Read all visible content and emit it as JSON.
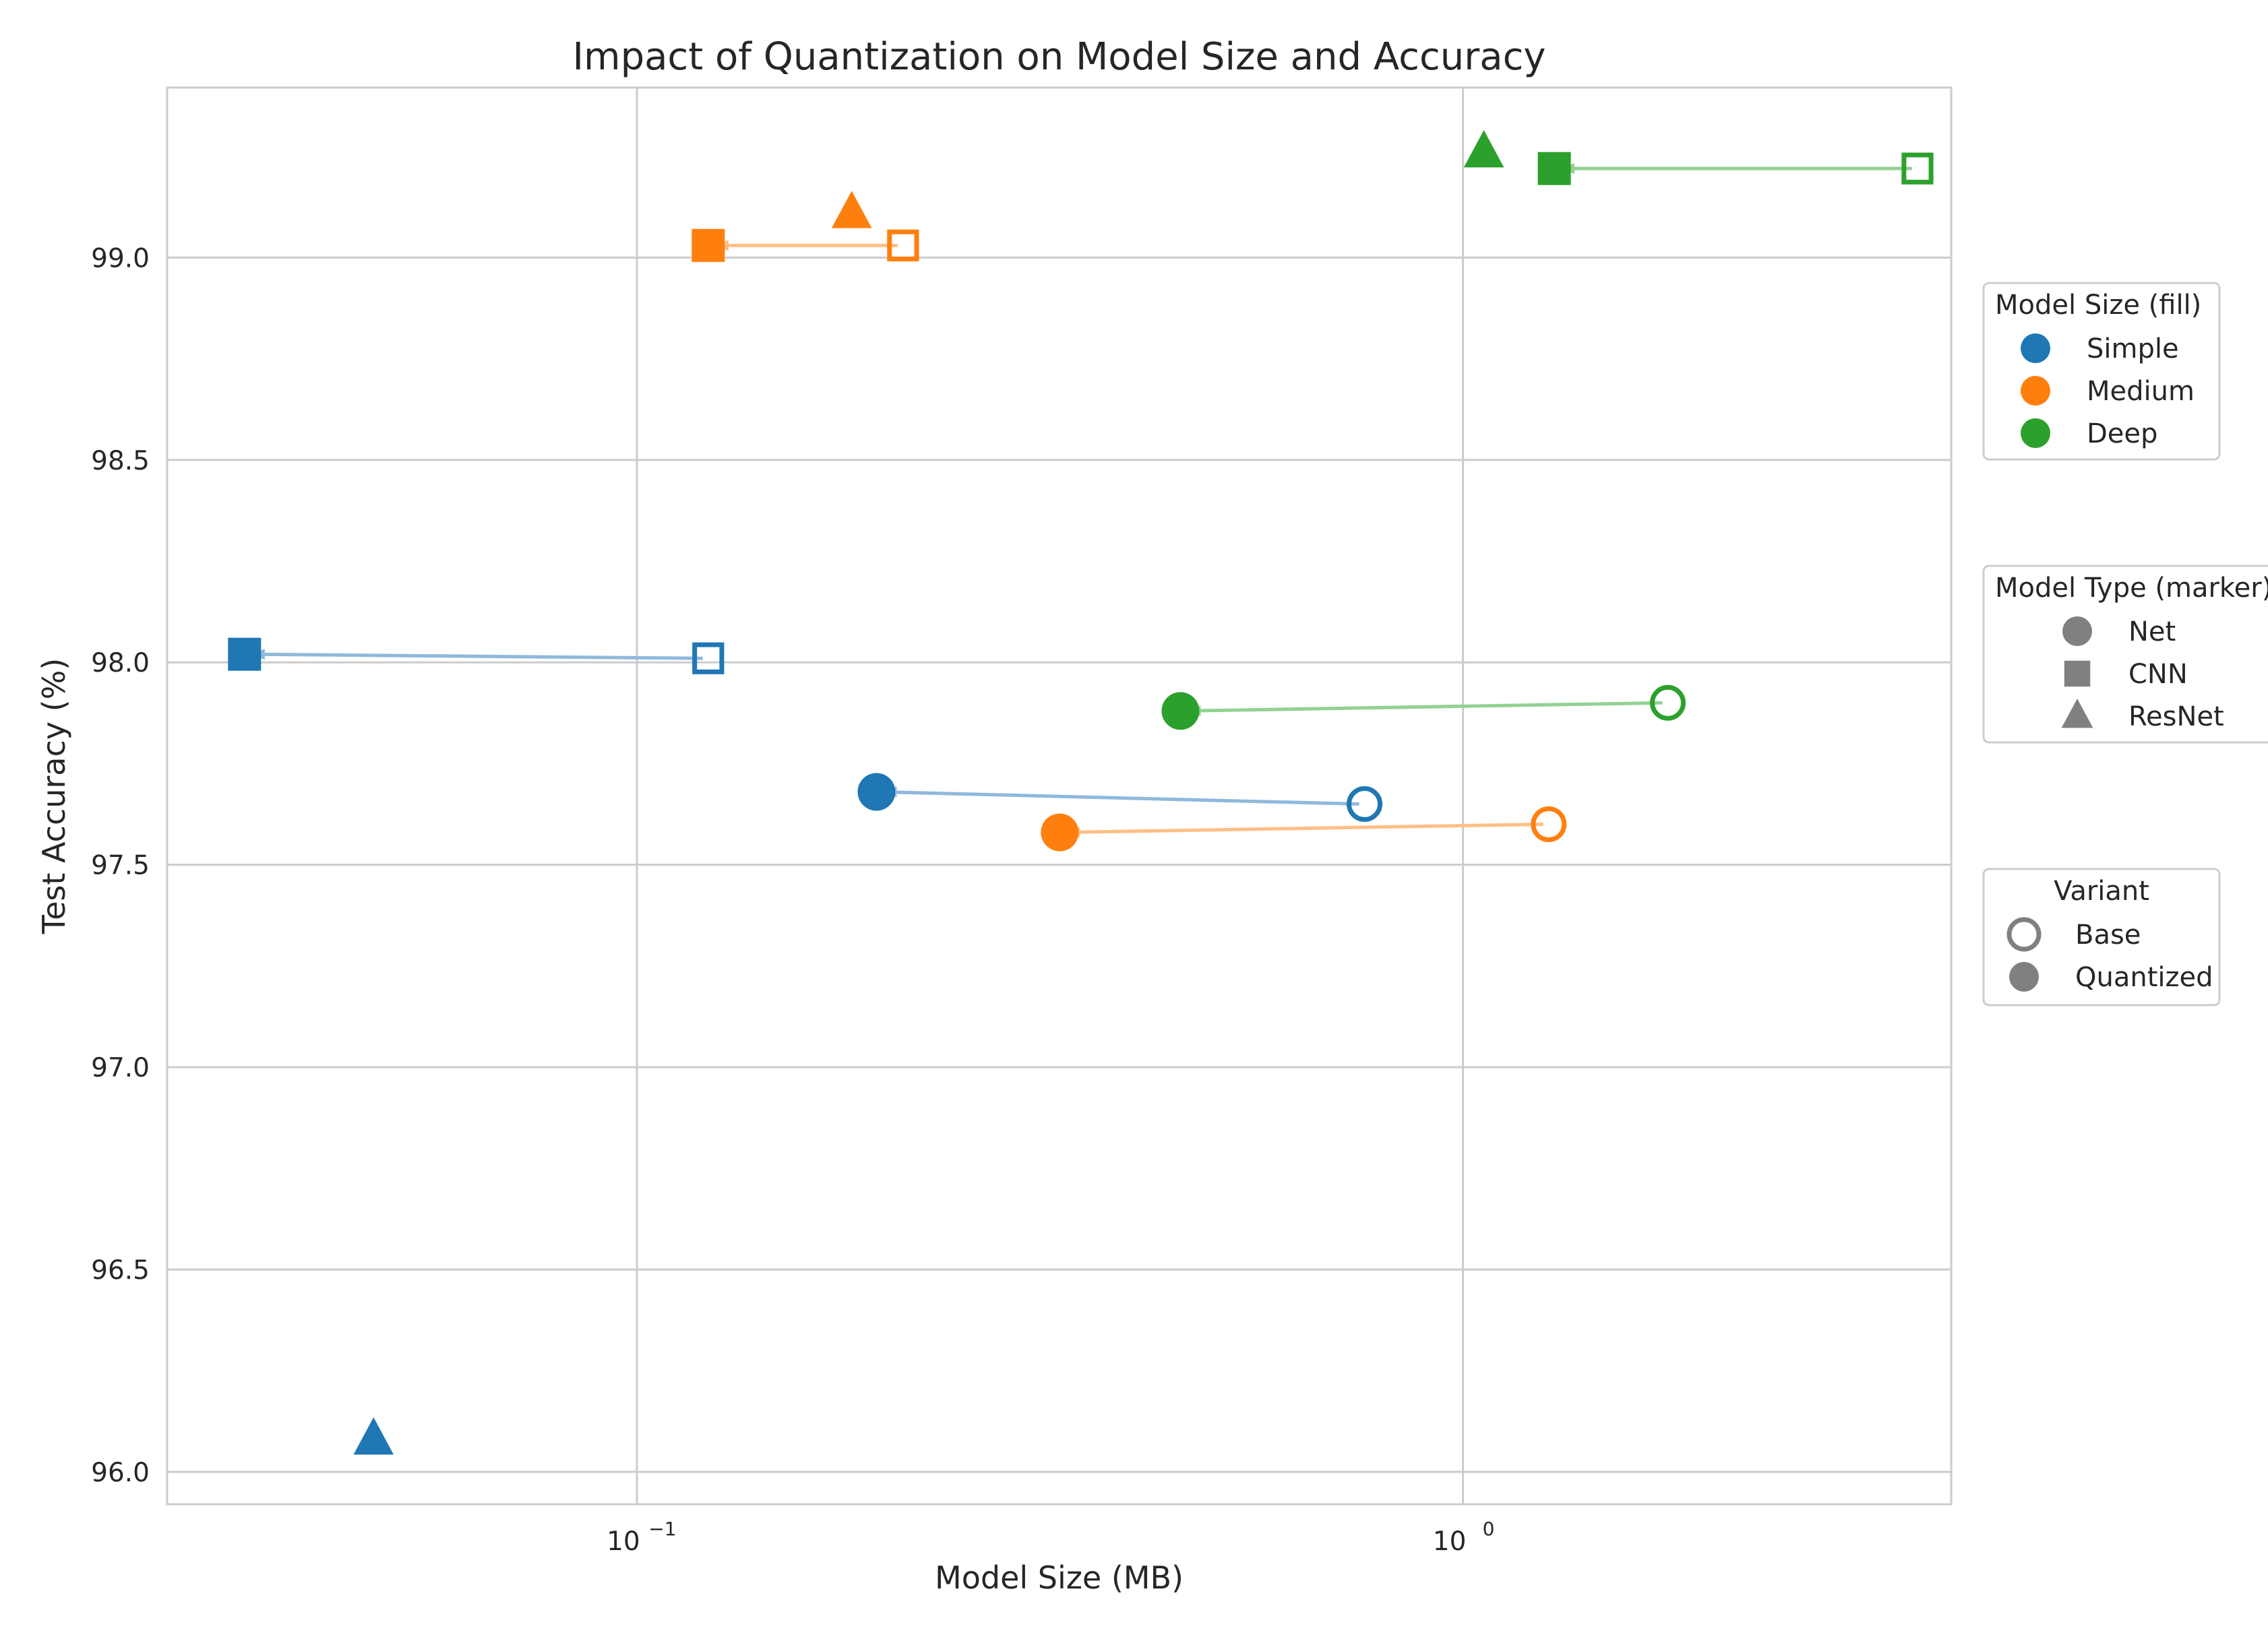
{
  "chart_data": {
    "type": "scatter",
    "title": "Impact of Quantization on Model Size and Accuracy",
    "xlabel": "Model Size (MB)",
    "ylabel": "Test Accuracy (%)",
    "xscale": "log",
    "xlim": [
      0.027,
      3.9
    ],
    "ylim": [
      95.92,
      99.42
    ],
    "x_ticks": [
      {
        "value": 0.1,
        "label_base": "10",
        "label_exp": "−1"
      },
      {
        "value": 1.0,
        "label_base": "10",
        "label_exp": "0"
      }
    ],
    "y_ticks": [
      {
        "value": 96.0,
        "label": "96.0"
      },
      {
        "value": 96.5,
        "label": "96.5"
      },
      {
        "value": 97.0,
        "label": "97.0"
      },
      {
        "value": 97.5,
        "label": "97.5"
      },
      {
        "value": 98.0,
        "label": "98.0"
      },
      {
        "value": 98.5,
        "label": "98.5"
      },
      {
        "value": 99.0,
        "label": "99.0"
      }
    ],
    "grid": true,
    "colors": {
      "Simple": "#1f77b4",
      "Medium": "#ff7f0e",
      "Deep": "#2ca02c",
      "neutral": "#808080",
      "arrow_Simple": "#8fb9dc",
      "arrow_Medium": "#ffbf86",
      "arrow_Deep": "#93d193"
    },
    "points": [
      {
        "size_class": "Simple",
        "model_type": "Net",
        "base": {
          "x": 0.76,
          "y": 97.65
        },
        "quantized": {
          "x": 0.195,
          "y": 97.68
        }
      },
      {
        "size_class": "Simple",
        "model_type": "CNN",
        "base": {
          "x": 0.122,
          "y": 98.01
        },
        "quantized": {
          "x": 0.0335,
          "y": 98.02
        }
      },
      {
        "size_class": "Simple",
        "model_type": "ResNet",
        "base": null,
        "quantized": {
          "x": 0.048,
          "y": 96.08
        }
      },
      {
        "size_class": "Medium",
        "model_type": "Net",
        "base": {
          "x": 1.27,
          "y": 97.6
        },
        "quantized": {
          "x": 0.325,
          "y": 97.58
        }
      },
      {
        "size_class": "Medium",
        "model_type": "CNN",
        "base": {
          "x": 0.21,
          "y": 99.03
        },
        "quantized": {
          "x": 0.122,
          "y": 99.03
        }
      },
      {
        "size_class": "Medium",
        "model_type": "ResNet",
        "base": null,
        "quantized": {
          "x": 0.182,
          "y": 99.11
        }
      },
      {
        "size_class": "Deep",
        "model_type": "Net",
        "base": {
          "x": 1.77,
          "y": 97.9
        },
        "quantized": {
          "x": 0.455,
          "y": 97.88
        }
      },
      {
        "size_class": "Deep",
        "model_type": "CNN",
        "base": {
          "x": 3.55,
          "y": 99.22
        },
        "quantized": {
          "x": 1.29,
          "y": 99.22
        }
      },
      {
        "size_class": "Deep",
        "model_type": "ResNet",
        "base": null,
        "quantized": {
          "x": 1.06,
          "y": 99.26
        }
      }
    ],
    "legends": [
      {
        "title": "Model Size (fill)",
        "placement": "right",
        "entries": [
          {
            "label": "Simple",
            "marker": "circle",
            "color": "#1f77b4",
            "filled": true
          },
          {
            "label": "Medium",
            "marker": "circle",
            "color": "#ff7f0e",
            "filled": true
          },
          {
            "label": "Deep",
            "marker": "circle",
            "color": "#2ca02c",
            "filled": true
          }
        ]
      },
      {
        "title": "Model Type (marker)",
        "placement": "right",
        "entries": [
          {
            "label": "Net",
            "marker": "circle",
            "color": "#808080",
            "filled": true
          },
          {
            "label": "CNN",
            "marker": "square",
            "color": "#808080",
            "filled": true
          },
          {
            "label": "ResNet",
            "marker": "triangle",
            "color": "#808080",
            "filled": true
          }
        ]
      },
      {
        "title": "Variant",
        "placement": "right",
        "entries": [
          {
            "label": "Base",
            "marker": "circle",
            "color": "#808080",
            "filled": false
          },
          {
            "label": "Quantized",
            "marker": "circle",
            "color": "#808080",
            "filled": true
          }
        ]
      }
    ]
  }
}
